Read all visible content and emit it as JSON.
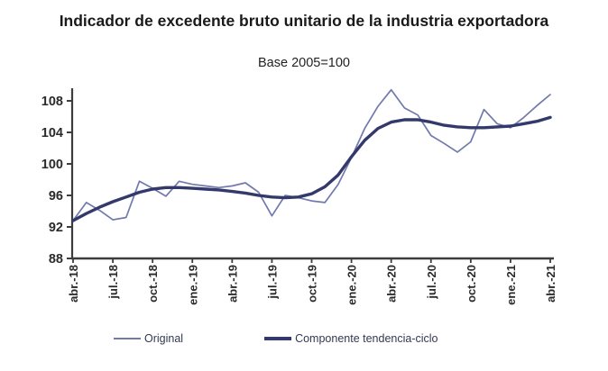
{
  "chart_data": {
    "type": "line",
    "title": "Indicador de excedente bruto unitario de la industria exportadora",
    "subtitle": "Base 2005=100",
    "x": [
      "abr.-18",
      "may.-18",
      "jun.-18",
      "jul.-18",
      "ago.-18",
      "sep.-18",
      "oct.-18",
      "nov.-18",
      "dic.-18",
      "ene.-19",
      "feb.-19",
      "mar.-19",
      "abr.-19",
      "may.-19",
      "jun.-19",
      "jul.-19",
      "ago.-19",
      "sep.-19",
      "oct.-19",
      "nov.-19",
      "dic.-19",
      "ene.-20",
      "feb.-20",
      "mar.-20",
      "abr.-20",
      "may.-20",
      "jun.-20",
      "jul.-20",
      "ago.-20",
      "sep.-20",
      "oct.-20",
      "nov.-20",
      "dic.-20",
      "ene.-21",
      "feb.-21",
      "mar.-21",
      "abr.-21"
    ],
    "x_tick_labels": [
      "abr.-18",
      "jul.-18",
      "oct.-18",
      "ene.-19",
      "abr.-19",
      "jul.-19",
      "oct.-19",
      "ene.-20",
      "abr.-20",
      "jul.-20",
      "oct.-20",
      "ene.-21",
      "abr.-21"
    ],
    "x_tick_every": 3,
    "series": [
      {
        "name": "Original",
        "color": "#7279ad",
        "stroke_width": 1.7,
        "values": [
          92.8,
          95.1,
          94.1,
          92.9,
          93.2,
          97.8,
          96.9,
          95.9,
          97.8,
          97.4,
          97.2,
          97.0,
          97.2,
          97.6,
          96.4,
          93.4,
          96.0,
          95.7,
          95.3,
          95.1,
          97.4,
          100.8,
          104.5,
          107.3,
          109.4,
          107.1,
          106.2,
          103.6,
          102.6,
          101.5,
          102.8,
          106.9,
          105.1,
          104.6,
          105.9,
          107.4,
          108.8
        ]
      },
      {
        "name": "Componente tendencia-ciclo",
        "color": "#333a6b",
        "stroke_width": 3.4,
        "values": [
          92.8,
          93.7,
          94.5,
          95.2,
          95.8,
          96.4,
          96.8,
          97.0,
          97.0,
          96.9,
          96.8,
          96.7,
          96.5,
          96.3,
          96.0,
          95.8,
          95.7,
          95.8,
          96.2,
          97.1,
          98.6,
          100.9,
          103.0,
          104.5,
          105.3,
          105.6,
          105.6,
          105.3,
          104.9,
          104.7,
          104.6,
          104.6,
          104.7,
          104.8,
          105.1,
          105.4,
          105.9
        ]
      }
    ],
    "yticks": [
      88,
      92,
      96,
      100,
      104,
      108
    ],
    "ylim": [
      88,
      110.6
    ],
    "xlabel": "",
    "ylabel": "",
    "grid": false,
    "legend_position": "bottom"
  },
  "colors": {
    "axis": "#3d3d3d",
    "tick_label": "#2b2b2b",
    "title_text": "#1a1a1a",
    "legend_text": "#33394f",
    "background": "#ffffff"
  }
}
